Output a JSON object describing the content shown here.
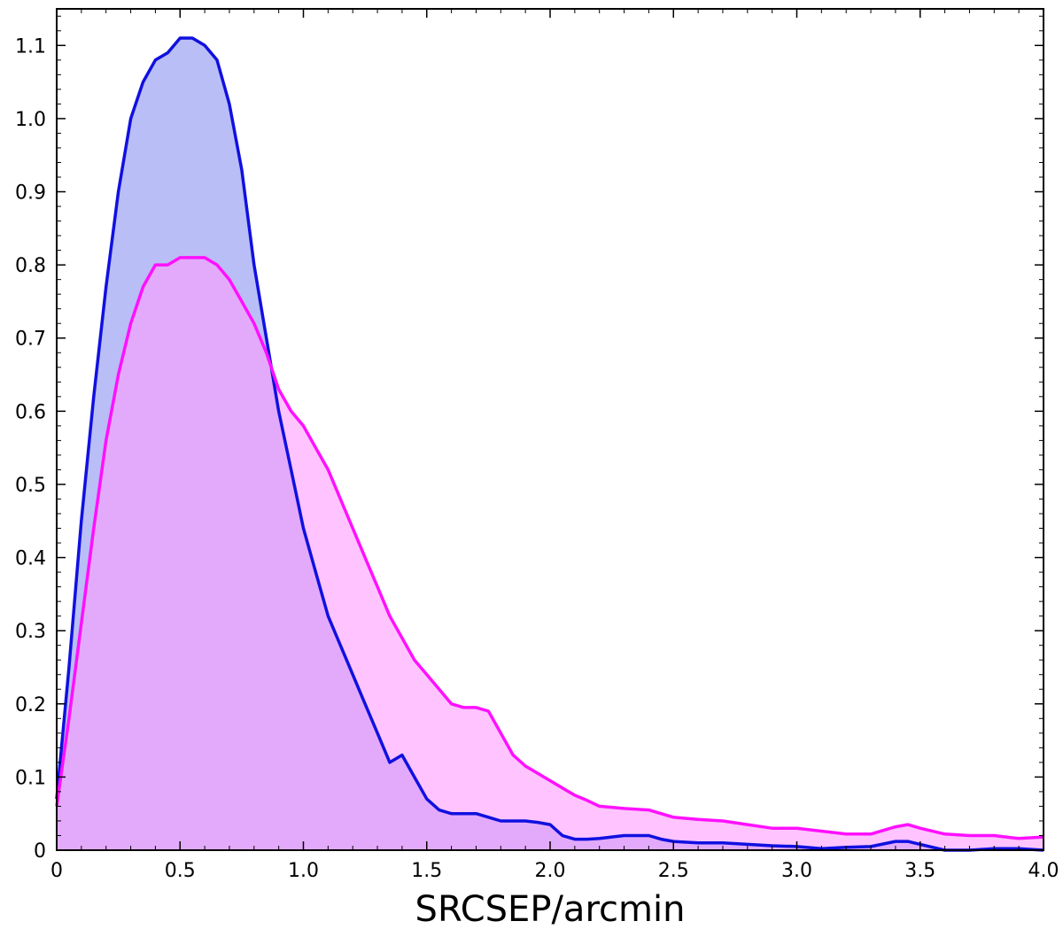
{
  "chart_data": {
    "type": "area",
    "title": "",
    "xlabel": "SRCSEP/arcmin",
    "ylabel": "",
    "xlim": [
      0,
      4.0
    ],
    "ylim": [
      0,
      1.15
    ],
    "xticks": [
      0,
      0.5,
      1.0,
      1.5,
      2.0,
      2.5,
      3.0,
      3.5,
      4.0
    ],
    "xtick_labels": [
      "0",
      "0.5",
      "1.0",
      "1.5",
      "2.0",
      "2.5",
      "3.0",
      "3.5",
      "4.0"
    ],
    "yticks": [
      0,
      0.1,
      0.2,
      0.3,
      0.4,
      0.5,
      0.6,
      0.7,
      0.8,
      0.9,
      1.0,
      1.1
    ],
    "ytick_labels": [
      "0",
      "0.1",
      "0.2",
      "0.3",
      "0.4",
      "0.5",
      "0.6",
      "0.7",
      "0.8",
      "0.9",
      "1.0",
      "1.1"
    ],
    "grid": false,
    "legend": "none",
    "series": [
      {
        "color": "#1010e0",
        "fill": "#8088ee",
        "x": [
          0,
          0.05,
          0.1,
          0.15,
          0.2,
          0.25,
          0.3,
          0.35,
          0.4,
          0.45,
          0.5,
          0.55,
          0.6,
          0.65,
          0.7,
          0.75,
          0.8,
          0.85,
          0.9,
          0.95,
          1.0,
          1.05,
          1.1,
          1.15,
          1.2,
          1.25,
          1.3,
          1.35,
          1.4,
          1.45,
          1.5,
          1.55,
          1.6,
          1.65,
          1.7,
          1.75,
          1.8,
          1.85,
          1.9,
          1.95,
          2.0,
          2.05,
          2.1,
          2.15,
          2.2,
          2.3,
          2.4,
          2.45,
          2.5,
          2.6,
          2.7,
          2.8,
          2.9,
          3.0,
          3.1,
          3.2,
          3.3,
          3.4,
          3.45,
          3.5,
          3.6,
          3.7,
          3.8,
          3.9,
          4.0
        ],
        "y": [
          0.07,
          0.25,
          0.45,
          0.62,
          0.77,
          0.9,
          1.0,
          1.05,
          1.08,
          1.09,
          1.11,
          1.11,
          1.1,
          1.08,
          1.02,
          0.93,
          0.8,
          0.7,
          0.6,
          0.52,
          0.44,
          0.38,
          0.32,
          0.28,
          0.24,
          0.2,
          0.16,
          0.12,
          0.13,
          0.1,
          0.07,
          0.055,
          0.05,
          0.05,
          0.05,
          0.045,
          0.04,
          0.04,
          0.04,
          0.038,
          0.035,
          0.02,
          0.015,
          0.015,
          0.016,
          0.02,
          0.02,
          0.015,
          0.012,
          0.01,
          0.01,
          0.008,
          0.006,
          0.005,
          0.002,
          0.004,
          0.005,
          0.012,
          0.012,
          0.008,
          0.0,
          0.0,
          0.002,
          0.002,
          0.0
        ]
      },
      {
        "color": "#ff10ff",
        "fill": "#ff9cff",
        "x": [
          0,
          0.05,
          0.1,
          0.15,
          0.2,
          0.25,
          0.3,
          0.35,
          0.4,
          0.45,
          0.5,
          0.55,
          0.6,
          0.65,
          0.7,
          0.75,
          0.8,
          0.85,
          0.9,
          0.95,
          1.0,
          1.05,
          1.1,
          1.15,
          1.2,
          1.25,
          1.3,
          1.35,
          1.4,
          1.45,
          1.5,
          1.55,
          1.6,
          1.65,
          1.7,
          1.75,
          1.8,
          1.85,
          1.9,
          1.95,
          2.0,
          2.05,
          2.1,
          2.15,
          2.2,
          2.3,
          2.4,
          2.45,
          2.5,
          2.6,
          2.7,
          2.8,
          2.9,
          3.0,
          3.1,
          3.2,
          3.3,
          3.4,
          3.45,
          3.5,
          3.6,
          3.7,
          3.8,
          3.9,
          4.0
        ],
        "y": [
          0.06,
          0.18,
          0.31,
          0.44,
          0.56,
          0.65,
          0.72,
          0.77,
          0.8,
          0.8,
          0.81,
          0.81,
          0.81,
          0.8,
          0.78,
          0.75,
          0.72,
          0.68,
          0.63,
          0.6,
          0.58,
          0.55,
          0.52,
          0.48,
          0.44,
          0.4,
          0.36,
          0.32,
          0.29,
          0.26,
          0.24,
          0.22,
          0.2,
          0.195,
          0.195,
          0.19,
          0.16,
          0.13,
          0.115,
          0.105,
          0.095,
          0.085,
          0.075,
          0.068,
          0.06,
          0.057,
          0.055,
          0.05,
          0.045,
          0.042,
          0.04,
          0.035,
          0.03,
          0.03,
          0.026,
          0.022,
          0.022,
          0.032,
          0.035,
          0.03,
          0.022,
          0.02,
          0.02,
          0.016,
          0.018
        ]
      }
    ]
  }
}
